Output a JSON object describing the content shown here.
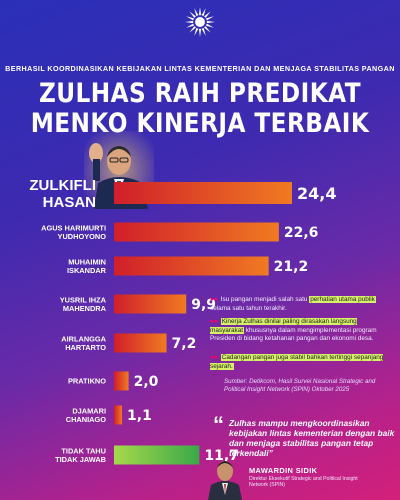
{
  "header": {
    "kicker": "BERHASIL KOORDINASIKAN KEBIJAKAN LINTAS KEMENTERIAN DAN MENJAGA STABILITAS PANGAN",
    "headline_line1": "ZULHAS RAIH PREDIKAT",
    "headline_line2": "MENKO KINERJA TERBAIK"
  },
  "chart_data": {
    "type": "bar",
    "orientation": "horizontal",
    "categories": [
      [
        "ZULKIFLI",
        "HASAN"
      ],
      [
        "AGUS HARIMURTI",
        "YUDHOYONO"
      ],
      [
        "MUHAIMIN",
        "ISKANDAR"
      ],
      [
        "YUSRIL IHZA",
        "MAHENDRA"
      ],
      [
        "AIRLANGGA",
        "HARTARTO"
      ],
      [
        "PRATIKNO"
      ],
      [
        "DJAMARI",
        "CHANIAGO"
      ],
      [
        "TIDAK TAHU",
        "TIDAK JAWAB"
      ]
    ],
    "values": [
      24.4,
      22.6,
      21.2,
      9.9,
      7.2,
      2.0,
      1.1,
      11.7
    ],
    "value_labels": [
      "24,4",
      "22,6",
      "21,2",
      "9,9",
      "7,2",
      "2,0",
      "1,1",
      "11,7"
    ],
    "xlim": [
      0,
      26
    ],
    "colors": {
      "bar_start": "#f07a22",
      "bar_end": "#d01f2a",
      "last_bar_start": "#a6d94a",
      "last_bar_end": "#3aa84a"
    },
    "grid": false,
    "legend": "none"
  },
  "notes": {
    "n1_pre": "Isu pangan menjadi salah satu ",
    "n1_hl": "perhatian utama publik",
    "n1_post": " selama satu tahun terakhir.",
    "n2_hl": "Kinerja Zulhas dinilai paling dirasakan langsung masyarakat",
    "n2_post": " khususnya dalam mengimplementasi program Presiden di bidang ketahanan pangan dan ekonomi desa.",
    "n3_hl": "Cadangan pangan juga stabil bahkan tertinggi sepanjang sejarah."
  },
  "source": "Sumber: Detikcom, Hasil Survei Nasional Strategic and Political Insight Network (SPIN) Oktober 2025",
  "quote": {
    "mark": "“",
    "text": "Zulhas mampu mengkoordinasikan kebijakan lintas kementerian dengan baik dan menjaga stabilitas pangan tetap terkendali”",
    "speaker_name": "MAWARDIN SIDIK",
    "speaker_title": "Direktur Eksekutif Strategic and Political Insight Network (SPIN)"
  }
}
